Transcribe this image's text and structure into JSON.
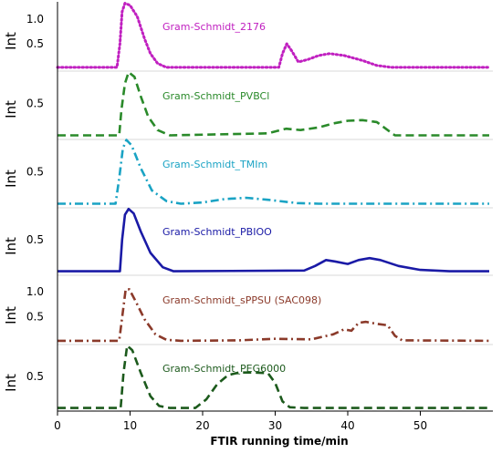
{
  "chart_data": {
    "type": "line",
    "layout": "stacked panels",
    "xlabel": "FTIR running time/min",
    "xlim": [
      0,
      60
    ],
    "x_ticks": [
      "0",
      "10",
      "20",
      "30",
      "40",
      "50"
    ],
    "panel_ylabel": "Int",
    "grid": false,
    "series": [
      {
        "name": "Gram-Schmidt_2176",
        "color": "#c020c0",
        "line_style": "dotted",
        "ylim": [
          0,
          1.35
        ],
        "y_ticks": [
          "1.0",
          "0.5"
        ],
        "y_tick_values": [
          1.0,
          0.5
        ],
        "points": [
          [
            0,
            0.02
          ],
          [
            8.2,
            0.02
          ],
          [
            8.6,
            0.5
          ],
          [
            8.9,
            1.15
          ],
          [
            9.3,
            1.32
          ],
          [
            10.0,
            1.28
          ],
          [
            11.0,
            1.05
          ],
          [
            12.0,
            0.6
          ],
          [
            12.8,
            0.3
          ],
          [
            13.8,
            0.1
          ],
          [
            15.0,
            0.02
          ],
          [
            30.5,
            0.02
          ],
          [
            31.0,
            0.3
          ],
          [
            31.6,
            0.5
          ],
          [
            32.3,
            0.35
          ],
          [
            33.2,
            0.13
          ],
          [
            34.5,
            0.18
          ],
          [
            36.0,
            0.26
          ],
          [
            37.5,
            0.3
          ],
          [
            39.5,
            0.26
          ],
          [
            42.0,
            0.16
          ],
          [
            44.0,
            0.06
          ],
          [
            46.0,
            0.02
          ],
          [
            59.5,
            0.02
          ]
        ]
      },
      {
        "name": "Gram-Schmidt_PVBCl",
        "color": "#2a8a2a",
        "line_style": "dashed",
        "ylim": [
          0,
          1.0
        ],
        "y_ticks": [
          "0.5"
        ],
        "y_tick_values": [
          0.5
        ],
        "points": [
          [
            0,
            0.02
          ],
          [
            8.5,
            0.02
          ],
          [
            8.8,
            0.4
          ],
          [
            9.3,
            0.8
          ],
          [
            9.8,
            0.97
          ],
          [
            10.6,
            0.9
          ],
          [
            11.5,
            0.6
          ],
          [
            12.5,
            0.3
          ],
          [
            13.8,
            0.1
          ],
          [
            15.5,
            0.02
          ],
          [
            29.0,
            0.05
          ],
          [
            31.5,
            0.12
          ],
          [
            33.5,
            0.1
          ],
          [
            36.0,
            0.14
          ],
          [
            38.0,
            0.2
          ],
          [
            40.0,
            0.24
          ],
          [
            42.0,
            0.25
          ],
          [
            44.0,
            0.22
          ],
          [
            45.5,
            0.1
          ],
          [
            46.5,
            0.02
          ],
          [
            59.5,
            0.02
          ]
        ]
      },
      {
        "name": "Gram-Schmidt_TMIm",
        "color": "#1aa3c4",
        "line_style": "dash-dot",
        "ylim": [
          0,
          1.0
        ],
        "y_ticks": [
          "0.5"
        ],
        "y_tick_values": [
          0.5
        ],
        "points": [
          [
            0,
            0.02
          ],
          [
            8.0,
            0.02
          ],
          [
            8.5,
            0.4
          ],
          [
            9.0,
            0.85
          ],
          [
            9.5,
            0.98
          ],
          [
            10.2,
            0.9
          ],
          [
            11.5,
            0.55
          ],
          [
            13.0,
            0.22
          ],
          [
            15.0,
            0.06
          ],
          [
            17.0,
            0.02
          ],
          [
            20.0,
            0.04
          ],
          [
            23.0,
            0.09
          ],
          [
            26.0,
            0.11
          ],
          [
            29.0,
            0.08
          ],
          [
            33.0,
            0.03
          ],
          [
            36.0,
            0.02
          ],
          [
            59.5,
            0.02
          ]
        ]
      },
      {
        "name": "Gram-Schmidt_PBIOO",
        "color": "#1a1aa6",
        "line_style": "solid",
        "ylim": [
          0,
          1.0
        ],
        "y_ticks": [
          "0.5"
        ],
        "y_tick_values": [
          0.5
        ],
        "points": [
          [
            0,
            0.02
          ],
          [
            8.6,
            0.02
          ],
          [
            8.9,
            0.5
          ],
          [
            9.3,
            0.88
          ],
          [
            9.8,
            0.97
          ],
          [
            10.5,
            0.9
          ],
          [
            11.5,
            0.62
          ],
          [
            12.8,
            0.3
          ],
          [
            14.5,
            0.08
          ],
          [
            16.0,
            0.02
          ],
          [
            34.0,
            0.03
          ],
          [
            35.5,
            0.1
          ],
          [
            37.0,
            0.19
          ],
          [
            38.2,
            0.17
          ],
          [
            40.0,
            0.13
          ],
          [
            41.5,
            0.19
          ],
          [
            43.0,
            0.22
          ],
          [
            44.5,
            0.19
          ],
          [
            47.0,
            0.1
          ],
          [
            50.0,
            0.04
          ],
          [
            54.0,
            0.02
          ],
          [
            59.5,
            0.02
          ]
        ]
      },
      {
        "name": "Gram-Schmidt_sPPSU  (SAC098)",
        "color": "#8b3a2a",
        "line_style": "dash-dot",
        "ylim": [
          0,
          1.35
        ],
        "y_ticks": [
          "1.0",
          "0.5"
        ],
        "y_tick_values": [
          1.0,
          0.5
        ],
        "points": [
          [
            0,
            0.02
          ],
          [
            8.5,
            0.02
          ],
          [
            9.0,
            0.6
          ],
          [
            9.4,
            1.05
          ],
          [
            9.9,
            1.05
          ],
          [
            10.8,
            0.8
          ],
          [
            12.0,
            0.45
          ],
          [
            13.5,
            0.15
          ],
          [
            15.0,
            0.04
          ],
          [
            17.0,
            0.02
          ],
          [
            25.0,
            0.03
          ],
          [
            30.0,
            0.06
          ],
          [
            35.0,
            0.05
          ],
          [
            38.0,
            0.15
          ],
          [
            39.5,
            0.25
          ],
          [
            40.5,
            0.22
          ],
          [
            41.5,
            0.38
          ],
          [
            42.5,
            0.4
          ],
          [
            44.0,
            0.36
          ],
          [
            45.5,
            0.33
          ],
          [
            46.5,
            0.12
          ],
          [
            47.5,
            0.03
          ],
          [
            59.5,
            0.02
          ]
        ]
      },
      {
        "name": "Gram-Schmidt_PEG6000",
        "color": "#1c5a1c",
        "line_style": "dashed",
        "ylim": [
          0,
          1.0
        ],
        "y_ticks": [
          "0.5"
        ],
        "y_tick_values": [
          0.5
        ],
        "points": [
          [
            0,
            0.02
          ],
          [
            8.7,
            0.02
          ],
          [
            9.1,
            0.55
          ],
          [
            9.6,
            0.97
          ],
          [
            10.3,
            0.9
          ],
          [
            11.5,
            0.55
          ],
          [
            12.8,
            0.2
          ],
          [
            14.0,
            0.05
          ],
          [
            15.5,
            0.02
          ],
          [
            19.0,
            0.02
          ],
          [
            20.5,
            0.15
          ],
          [
            22.0,
            0.38
          ],
          [
            23.5,
            0.52
          ],
          [
            25.0,
            0.56
          ],
          [
            27.0,
            0.56
          ],
          [
            29.0,
            0.55
          ],
          [
            30.0,
            0.4
          ],
          [
            31.0,
            0.12
          ],
          [
            32.0,
            0.03
          ],
          [
            34.0,
            0.02
          ],
          [
            59.5,
            0.02
          ]
        ]
      }
    ]
  }
}
